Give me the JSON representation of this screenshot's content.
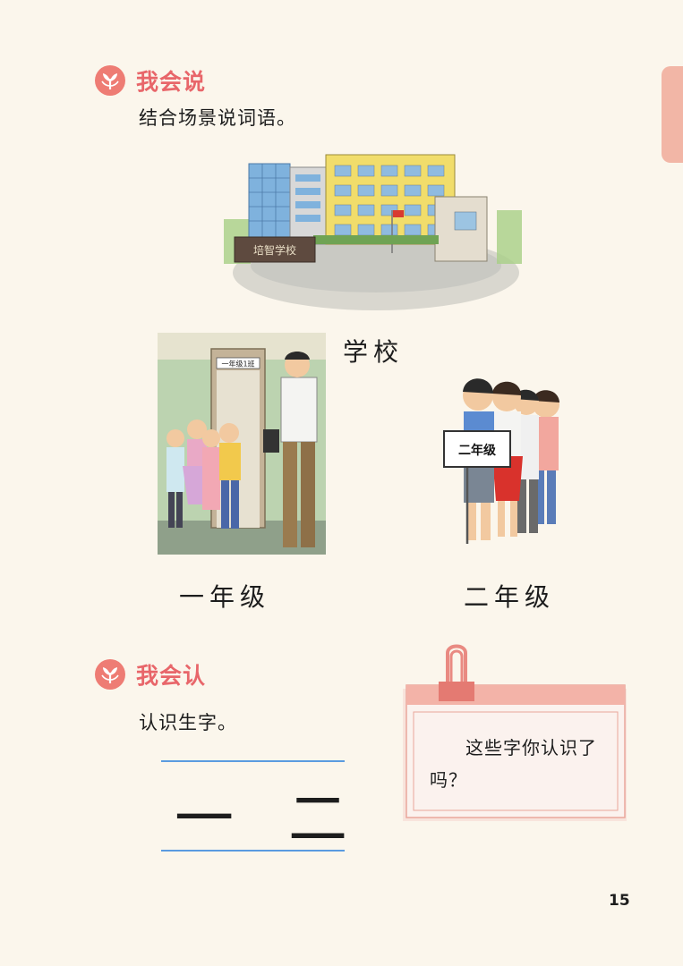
{
  "section1": {
    "title": "我会说",
    "instruction": "结合场景说词语。"
  },
  "scene": {
    "school_sign": "培智学校",
    "school_caption": "学校",
    "door_sign": "一年级1班",
    "grade1_caption": "一年级",
    "board_text": "二年级",
    "grade2_caption": "二年级"
  },
  "section2": {
    "title": "我会认",
    "instruction": "认识生字。",
    "characters": "一 二"
  },
  "note": {
    "text": "这些字你认识了吗？"
  },
  "page_number": "15",
  "colors": {
    "accent": "#e8666a",
    "background": "#fbf6ec",
    "side_tab": "#f2b6a6",
    "guide_line": "#5a9be0"
  },
  "icons": [
    "leaf-badge-icon",
    "paper-clip-icon"
  ]
}
